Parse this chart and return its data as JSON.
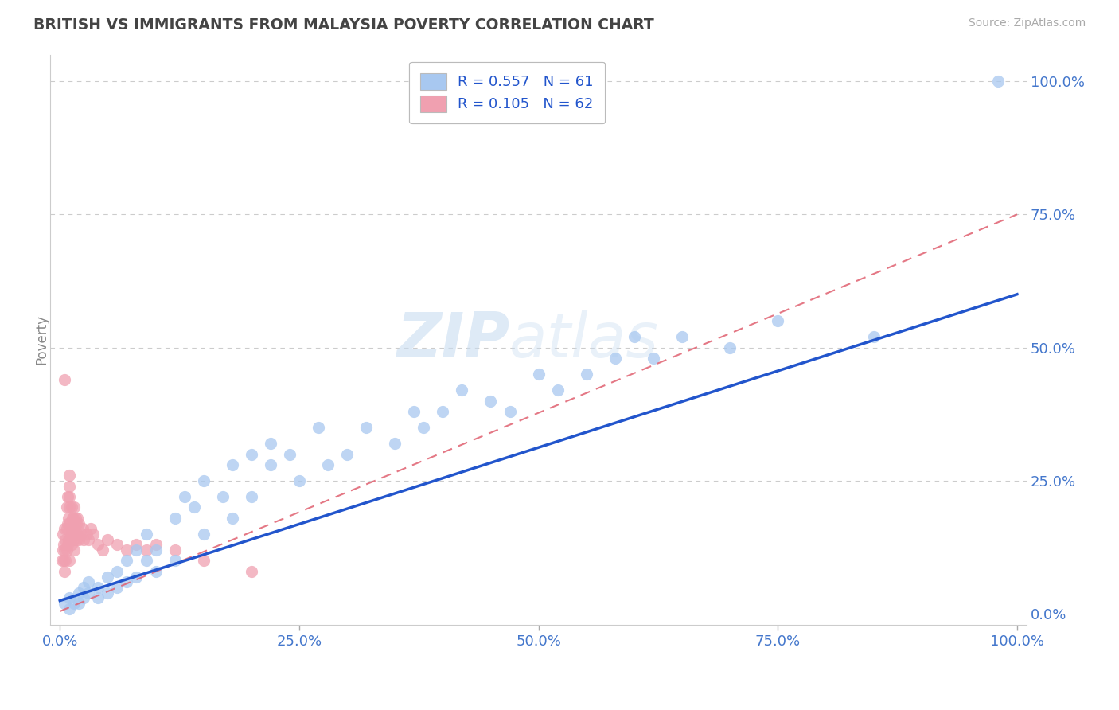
{
  "title": "BRITISH VS IMMIGRANTS FROM MALAYSIA POVERTY CORRELATION CHART",
  "source": "Source: ZipAtlas.com",
  "ylabel": "Poverty",
  "british_R": "0.557",
  "british_N": "61",
  "malaysia_R": "0.105",
  "malaysia_N": "62",
  "blue_color": "#A8C8F0",
  "blue_line_color": "#2255CC",
  "pink_color": "#F0A0B0",
  "pink_line_color": "#E06070",
  "grid_color": "#CCCCCC",
  "background_color": "#FFFFFF",
  "title_color": "#444444",
  "axis_label_color": "#4477CC",
  "watermark": "ZIPatlas",
  "x_ticks": [
    0.0,
    0.25,
    0.5,
    0.75,
    1.0
  ],
  "x_tick_labels": [
    "0.0%",
    "25.0%",
    "50.0%",
    "75.0%",
    "100.0%"
  ],
  "y_ticks": [
    0.0,
    0.25,
    0.5,
    0.75,
    1.0
  ],
  "y_tick_labels": [
    "0.0%",
    "25.0%",
    "50.0%",
    "75.0%",
    "100.0%"
  ],
  "british_x": [
    0.005,
    0.01,
    0.01,
    0.015,
    0.02,
    0.02,
    0.025,
    0.025,
    0.03,
    0.03,
    0.04,
    0.04,
    0.05,
    0.05,
    0.06,
    0.06,
    0.07,
    0.07,
    0.08,
    0.08,
    0.09,
    0.09,
    0.1,
    0.1,
    0.12,
    0.12,
    0.13,
    0.14,
    0.15,
    0.15,
    0.17,
    0.18,
    0.18,
    0.2,
    0.2,
    0.22,
    0.22,
    0.24,
    0.25,
    0.27,
    0.28,
    0.3,
    0.32,
    0.35,
    0.37,
    0.38,
    0.4,
    0.42,
    0.45,
    0.47,
    0.5,
    0.52,
    0.55,
    0.58,
    0.6,
    0.62,
    0.65,
    0.7,
    0.75,
    0.85,
    0.98
  ],
  "british_y": [
    0.02,
    0.03,
    0.01,
    0.02,
    0.04,
    0.02,
    0.03,
    0.05,
    0.04,
    0.06,
    0.03,
    0.05,
    0.07,
    0.04,
    0.08,
    0.05,
    0.1,
    0.06,
    0.12,
    0.07,
    0.1,
    0.15,
    0.08,
    0.12,
    0.18,
    0.1,
    0.22,
    0.2,
    0.25,
    0.15,
    0.22,
    0.28,
    0.18,
    0.3,
    0.22,
    0.28,
    0.32,
    0.3,
    0.25,
    0.35,
    0.28,
    0.3,
    0.35,
    0.32,
    0.38,
    0.35,
    0.38,
    0.42,
    0.4,
    0.38,
    0.45,
    0.42,
    0.45,
    0.48,
    0.52,
    0.48,
    0.52,
    0.5,
    0.55,
    0.52,
    1.0
  ],
  "malaysia_x": [
    0.002,
    0.003,
    0.003,
    0.004,
    0.004,
    0.005,
    0.005,
    0.005,
    0.006,
    0.006,
    0.007,
    0.007,
    0.007,
    0.008,
    0.008,
    0.008,
    0.009,
    0.009,
    0.01,
    0.01,
    0.01,
    0.01,
    0.01,
    0.01,
    0.01,
    0.012,
    0.012,
    0.012,
    0.013,
    0.013,
    0.014,
    0.014,
    0.015,
    0.015,
    0.015,
    0.016,
    0.016,
    0.017,
    0.017,
    0.018,
    0.018,
    0.02,
    0.02,
    0.022,
    0.024,
    0.025,
    0.028,
    0.03,
    0.032,
    0.035,
    0.04,
    0.045,
    0.05,
    0.06,
    0.07,
    0.08,
    0.09,
    0.1,
    0.12,
    0.15,
    0.2,
    0.005
  ],
  "malaysia_y": [
    0.1,
    0.12,
    0.15,
    0.1,
    0.13,
    0.08,
    0.12,
    0.16,
    0.1,
    0.14,
    0.12,
    0.16,
    0.2,
    0.13,
    0.17,
    0.22,
    0.14,
    0.18,
    0.1,
    0.14,
    0.17,
    0.2,
    0.22,
    0.24,
    0.26,
    0.13,
    0.16,
    0.2,
    0.15,
    0.18,
    0.14,
    0.18,
    0.12,
    0.16,
    0.2,
    0.15,
    0.18,
    0.14,
    0.17,
    0.15,
    0.18,
    0.14,
    0.17,
    0.15,
    0.16,
    0.14,
    0.15,
    0.14,
    0.16,
    0.15,
    0.13,
    0.12,
    0.14,
    0.13,
    0.12,
    0.13,
    0.12,
    0.13,
    0.12,
    0.1,
    0.08,
    0.44
  ],
  "british_line_x": [
    0.0,
    1.0
  ],
  "british_line_y": [
    0.025,
    0.6
  ],
  "malaysia_line_x": [
    0.0,
    1.0
  ],
  "malaysia_line_y": [
    0.005,
    0.75
  ]
}
